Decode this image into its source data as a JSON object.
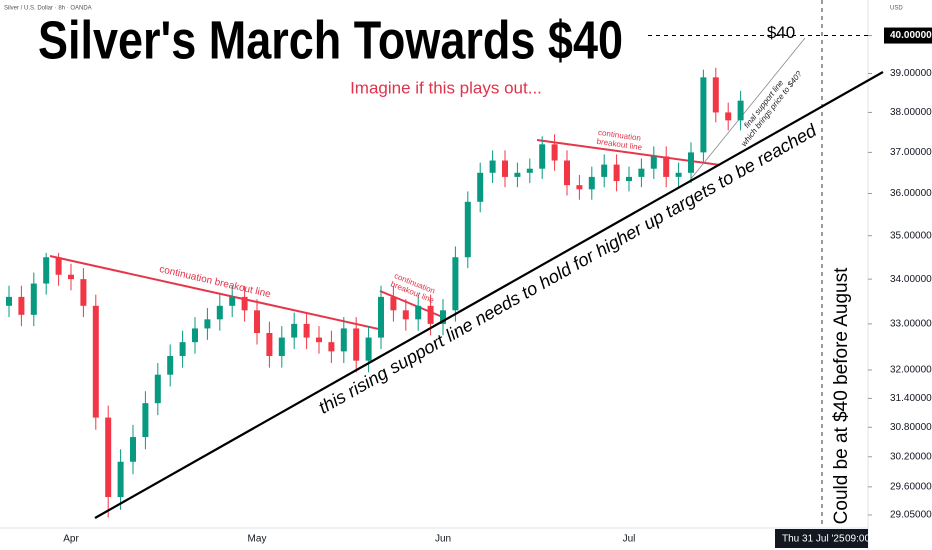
{
  "chart_data": {
    "type": "candlestick",
    "title": "Silver's March Towards $40",
    "subtitle": "Imagine if this plays out...",
    "symbol": "Silver / U.S. Dollar · 8h · OANDA",
    "currency": "USD",
    "cursor_label": "Thu 31 Jul '25",
    "cursor_time": "09:00",
    "price_line": {
      "value": 40,
      "label": "$40"
    },
    "annotations": {
      "breakout_1": "continuation breakout line",
      "breakout_2": [
        "continuation",
        "breakout line"
      ],
      "breakout_3": [
        "continuation",
        "breakout line"
      ],
      "final_support": [
        "final support line",
        "which brings price to $40?"
      ],
      "support": "this rising support line needs to hold for higher up targets to be reached",
      "forecast": "Could be at $40 before August"
    },
    "log_scale": true,
    "up_color": "#089981",
    "down_color": "#f23645",
    "ylim": [
      28.76,
      40.96
    ],
    "yticks": [
      {
        "value": 40,
        "label": "40.00000"
      },
      {
        "value": 39,
        "label": "39.00000"
      },
      {
        "value": 38,
        "label": "38.00000"
      },
      {
        "value": 37,
        "label": "37.00000"
      },
      {
        "value": 36,
        "label": "36.00000"
      },
      {
        "value": 35,
        "label": "35.00000"
      },
      {
        "value": 34,
        "label": "34.00000"
      },
      {
        "value": 33,
        "label": "33.00000"
      },
      {
        "value": 32,
        "label": "32.00000"
      },
      {
        "value": 31.4,
        "label": "31.40000"
      },
      {
        "value": 30.8,
        "label": "30.80000"
      },
      {
        "value": 30.2,
        "label": "30.20000"
      },
      {
        "value": 29.6,
        "label": "29.60000"
      },
      {
        "value": 29.05,
        "label": "29.05000"
      }
    ],
    "categories": [
      null,
      null,
      null,
      null,
      null,
      "Apr",
      null,
      null,
      null,
      null,
      null,
      null,
      null,
      null,
      null,
      null,
      null,
      null,
      null,
      null,
      "May",
      null,
      null,
      null,
      null,
      null,
      null,
      null,
      null,
      null,
      null,
      null,
      null,
      null,
      null,
      "Jun",
      null,
      null,
      null,
      null,
      null,
      null,
      null,
      null,
      null,
      null,
      null,
      null,
      null,
      null,
      "Jul",
      null,
      null,
      null,
      null,
      null,
      null,
      null,
      null,
      null
    ],
    "open": [
      33.4,
      33.6,
      33.2,
      33.9,
      34.5,
      34.1,
      34.0,
      33.4,
      31.0,
      29.4,
      30.1,
      30.6,
      31.3,
      31.9,
      32.3,
      32.6,
      32.9,
      33.1,
      33.4,
      33.6,
      33.3,
      32.8,
      32.3,
      32.7,
      33.0,
      32.7,
      32.6,
      32.4,
      32.9,
      32.2,
      32.7,
      33.6,
      33.3,
      33.1,
      33.4,
      33.0,
      33.3,
      34.5,
      35.8,
      36.5,
      36.8,
      36.4,
      36.5,
      36.6,
      37.2,
      36.8,
      36.2,
      36.1,
      36.4,
      36.7,
      36.3,
      36.4,
      36.6,
      36.9,
      36.4,
      36.5,
      37.0,
      38.9,
      38.0,
      37.8
    ],
    "high": [
      33.85,
      33.85,
      34.15,
      34.6,
      34.6,
      34.35,
      34.25,
      33.65,
      31.25,
      30.35,
      30.85,
      31.55,
      32.15,
      32.55,
      32.85,
      33.15,
      33.35,
      33.65,
      33.85,
      33.85,
      33.55,
      33.05,
      32.95,
      33.25,
      33.25,
      32.95,
      32.85,
      33.15,
      33.15,
      32.95,
      33.85,
      33.85,
      33.55,
      33.65,
      33.65,
      33.55,
      34.75,
      36.05,
      36.75,
      37.05,
      37.05,
      36.75,
      36.85,
      37.4,
      37.45,
      37.05,
      36.45,
      36.65,
      36.95,
      36.95,
      36.65,
      36.85,
      37.15,
      37.15,
      36.75,
      37.25,
      39.1,
      39.15,
      38.25,
      38.55
    ],
    "low": [
      33.15,
      32.95,
      32.95,
      33.65,
      33.85,
      33.75,
      33.15,
      30.75,
      29.0,
      29.15,
      29.85,
      30.35,
      31.05,
      31.65,
      32.05,
      32.35,
      32.65,
      32.85,
      33.15,
      33.05,
      32.55,
      32.05,
      32.05,
      32.45,
      32.45,
      32.35,
      32.15,
      32.15,
      31.95,
      31.95,
      32.45,
      33.05,
      32.85,
      32.85,
      32.75,
      32.75,
      33.05,
      34.25,
      35.55,
      36.25,
      36.15,
      36.15,
      36.25,
      36.35,
      36.55,
      35.95,
      35.85,
      35.85,
      36.15,
      36.05,
      36.05,
      36.15,
      36.35,
      36.15,
      36.15,
      36.25,
      36.75,
      37.75,
      37.55,
      37.55
    ],
    "close": [
      33.6,
      33.2,
      33.9,
      34.5,
      34.1,
      34.0,
      33.4,
      31.0,
      29.4,
      30.1,
      30.6,
      31.3,
      31.9,
      32.3,
      32.6,
      32.9,
      33.1,
      33.4,
      33.6,
      33.3,
      32.8,
      32.3,
      32.7,
      33.0,
      32.7,
      32.6,
      32.4,
      32.9,
      32.2,
      32.7,
      33.6,
      33.3,
      33.1,
      33.4,
      33.0,
      33.3,
      34.5,
      35.8,
      36.5,
      36.8,
      36.4,
      36.5,
      36.6,
      37.2,
      36.8,
      36.2,
      36.1,
      36.4,
      36.7,
      36.3,
      36.4,
      36.6,
      36.9,
      36.4,
      36.5,
      37.0,
      38.9,
      38.0,
      37.8,
      38.3
    ]
  }
}
